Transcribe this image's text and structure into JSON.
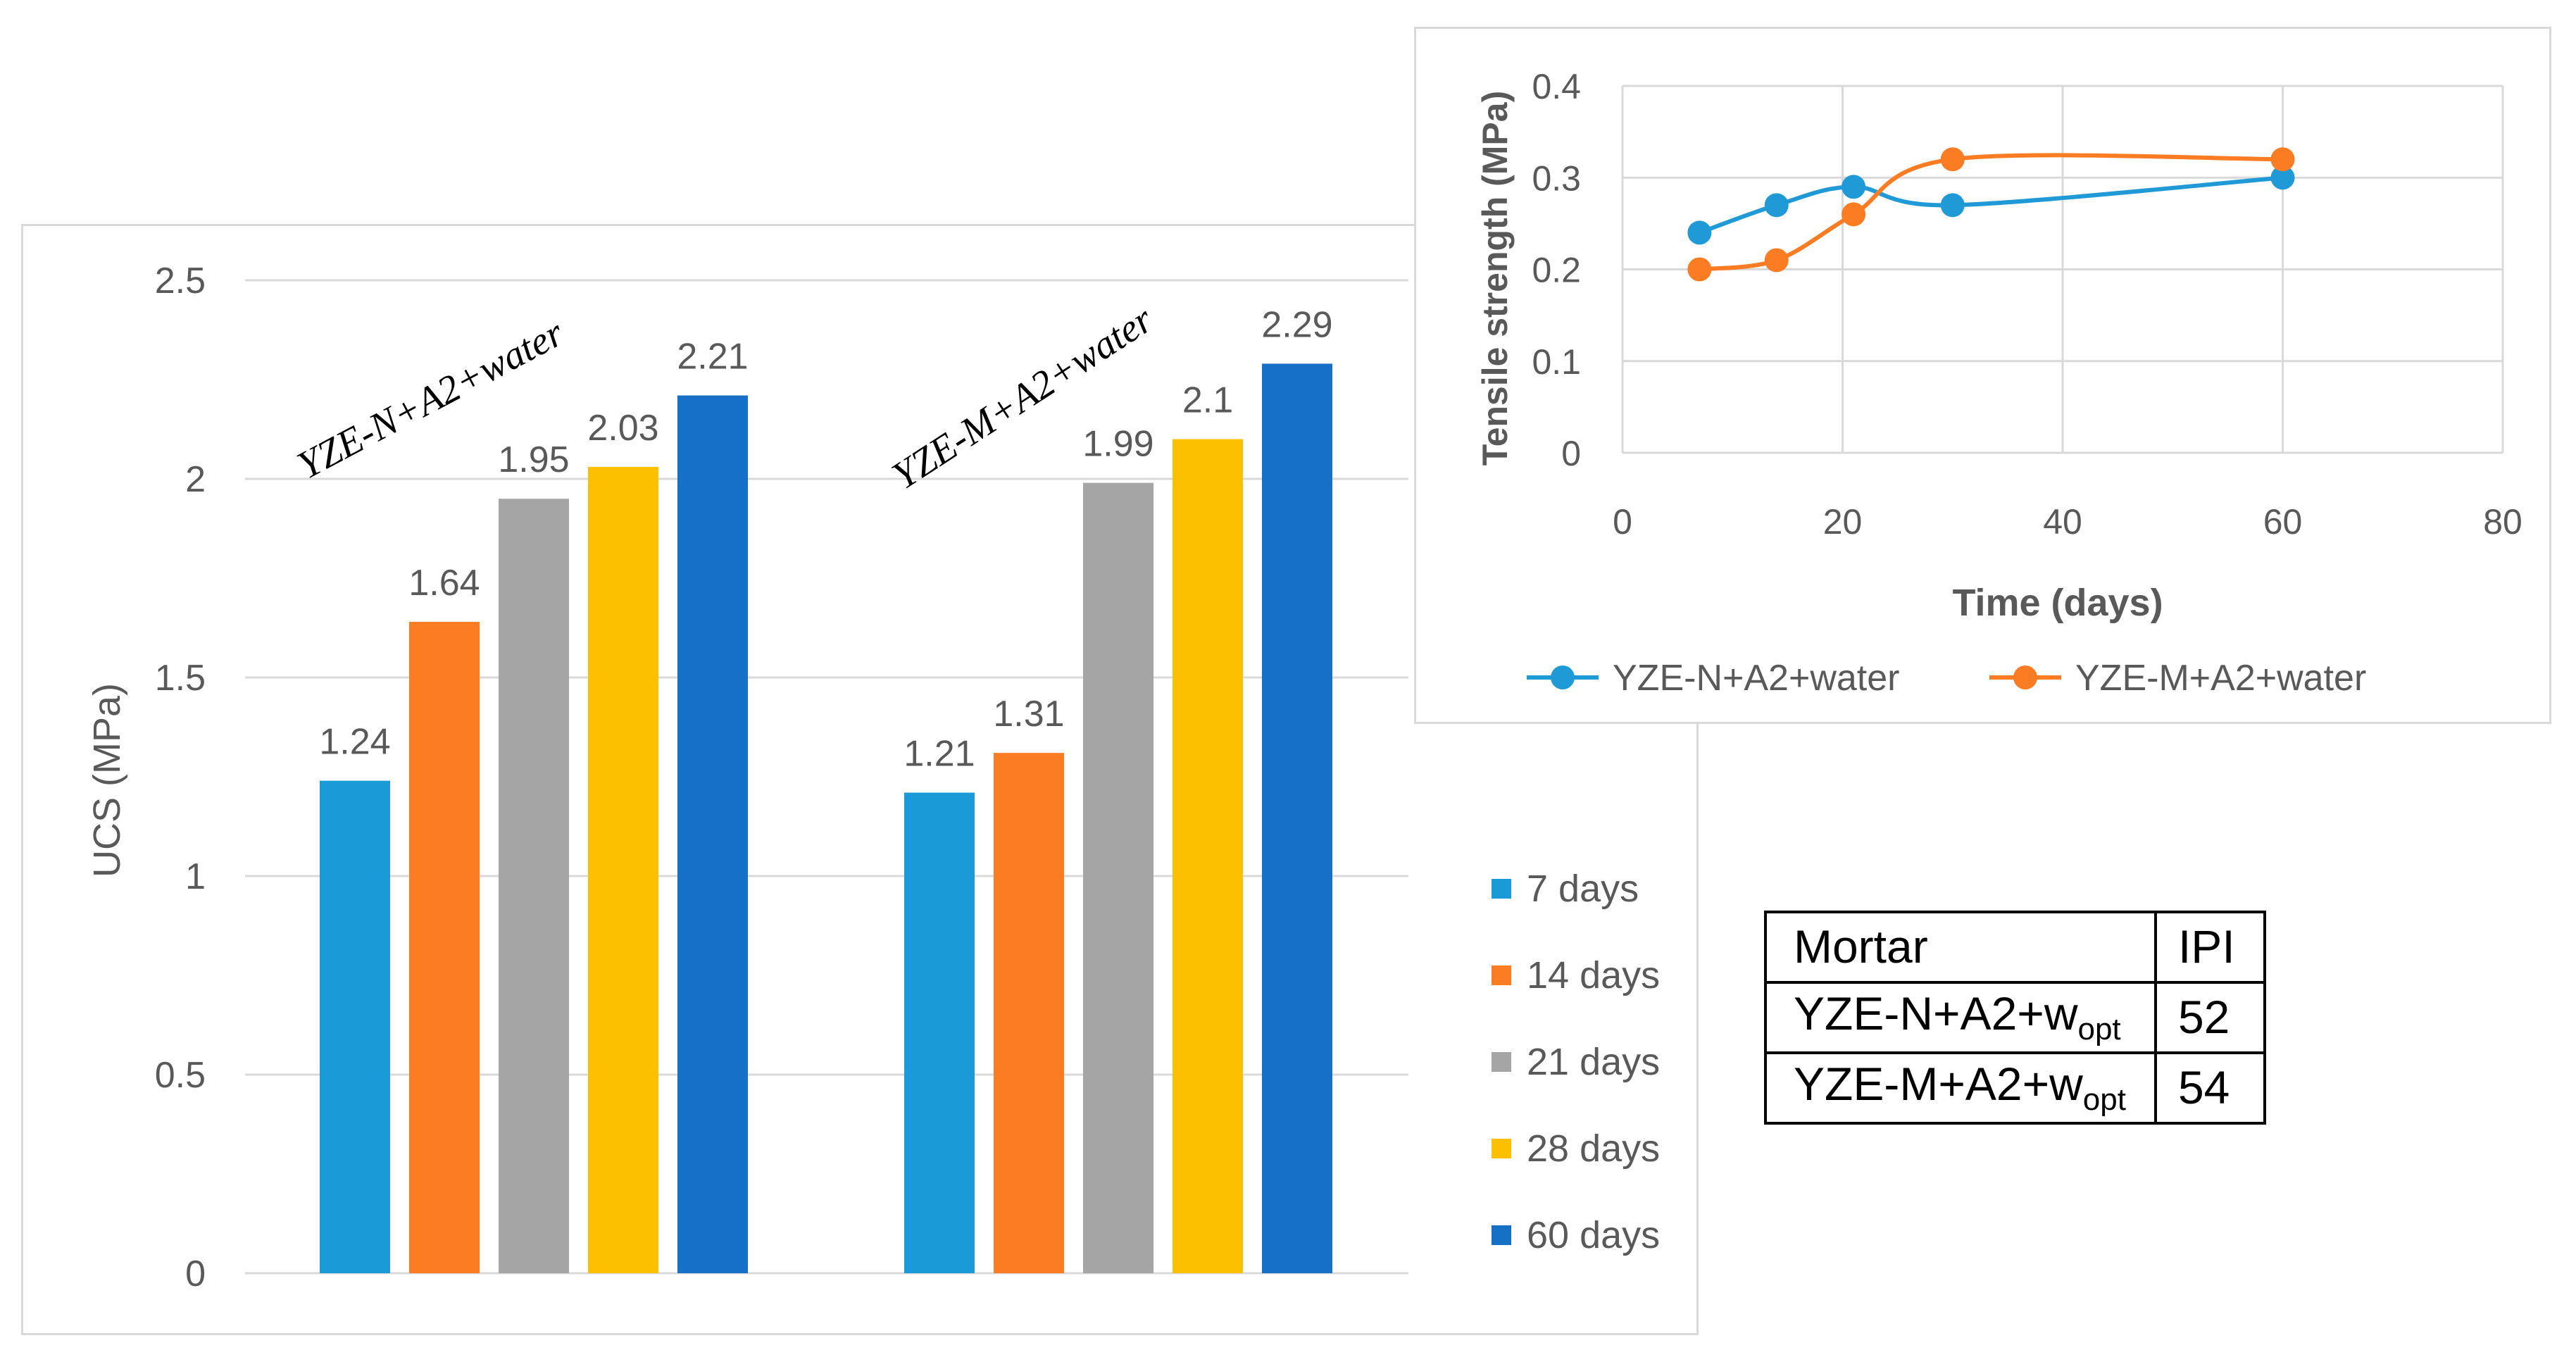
{
  "colors": {
    "d7": "#1a9ad6",
    "d14": "#fb7c23",
    "d21": "#a5a5a5",
    "d28": "#fcc000",
    "d60": "#1570c6",
    "grid": "#d9d9d9",
    "axis_text": "#595959"
  },
  "chart_data": [
    {
      "type": "bar",
      "ylabel": "UCS (MPa)",
      "ylim": [
        0,
        2.5
      ],
      "yticks": [
        "0",
        "0.5",
        "1",
        "1.5",
        "2",
        "2.5"
      ],
      "categories": [
        "YZE-N+A2+water",
        "YZE-M+A2+water"
      ],
      "series": [
        {
          "name": "7 days",
          "values": [
            1.24,
            1.21
          ],
          "labels": [
            "1.24",
            "1.21"
          ]
        },
        {
          "name": "14 days",
          "values": [
            1.64,
            1.31
          ],
          "labels": [
            "1.64",
            "1.31"
          ]
        },
        {
          "name": "21 days",
          "values": [
            1.95,
            1.99
          ],
          "labels": [
            "1.95",
            "1.99"
          ]
        },
        {
          "name": "28 days",
          "values": [
            2.03,
            2.1
          ],
          "labels": [
            "2.03",
            "2.1"
          ]
        },
        {
          "name": "60 days",
          "values": [
            2.21,
            2.29
          ],
          "labels": [
            "2.21",
            "2.29"
          ]
        }
      ],
      "legend_position": "right"
    },
    {
      "type": "line",
      "xlabel": "Time (days)",
      "ylabel": "Tensile strength (MPa)",
      "xlim": [
        0,
        80
      ],
      "ylim": [
        0,
        0.4
      ],
      "xticks": [
        "0",
        "20",
        "40",
        "60",
        "80"
      ],
      "yticks": [
        "0",
        "0.1",
        "0.2",
        "0.3",
        "0.4"
      ],
      "series": [
        {
          "name": "YZE-N+A2+water",
          "x": [
            7,
            14,
            21,
            30,
            60
          ],
          "y": [
            0.24,
            0.27,
            0.29,
            0.27,
            0.3
          ]
        },
        {
          "name": "YZE-M+A2+water",
          "x": [
            7,
            14,
            21,
            30,
            60
          ],
          "y": [
            0.2,
            0.21,
            0.26,
            0.32,
            0.32
          ]
        }
      ],
      "legend_position": "bottom"
    }
  ],
  "table": {
    "header": [
      "Mortar",
      "IPI"
    ],
    "rows": [
      {
        "base": "YZE-N+A2+w",
        "sub": "opt",
        "ipi": "52"
      },
      {
        "base": "YZE-M+A2+w",
        "sub": "opt",
        "ipi": "54"
      }
    ]
  }
}
